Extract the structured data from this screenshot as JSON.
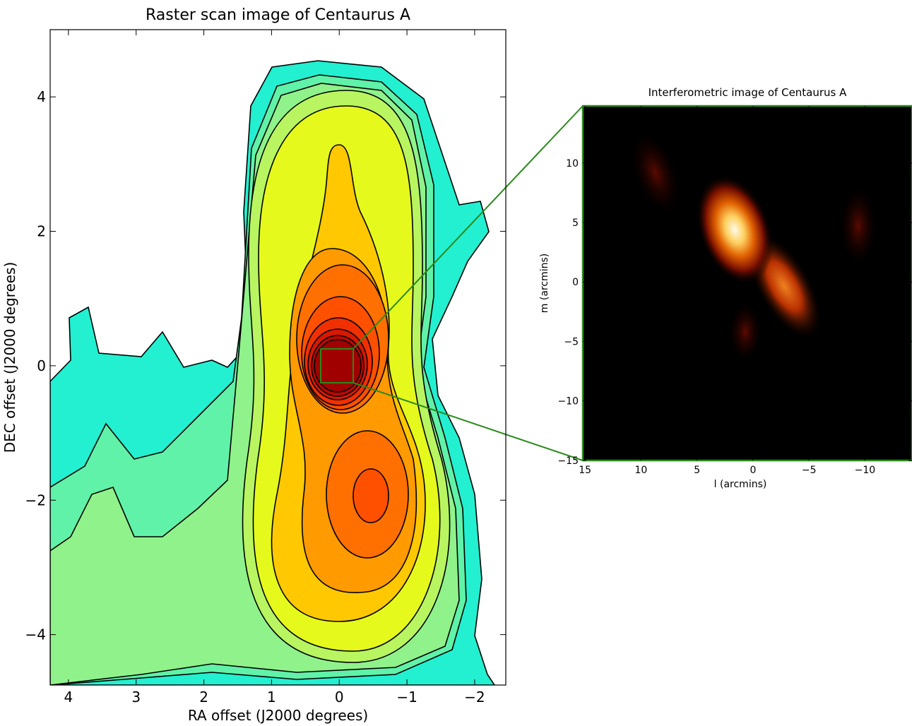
{
  "chart_data": [
    {
      "type": "contour",
      "title": "Raster scan image of Centaurus A",
      "xlabel": "RA offset (J2000 degrees)",
      "ylabel": "DEC offset (J2000 degrees)",
      "xlim": [
        4.27,
        -2.46
      ],
      "ylim": [
        -4.75,
        5.0
      ],
      "xticks": [
        4,
        3,
        2,
        1,
        0,
        {
          "value": -1,
          "label": "−1"
        },
        {
          "value": -2,
          "label": "−2"
        }
      ],
      "yticks": [
        {
          "value": -4,
          "label": "−4"
        },
        {
          "value": -2,
          "label": "−2"
        },
        0,
        2,
        4
      ]
    },
    {
      "type": "image",
      "title": "Interferometric image of Centaurus A",
      "xlabel": "l (arcmins)",
      "ylabel": "m (arcmins)",
      "xlim": [
        15.2,
        -14.2
      ],
      "ylim": [
        -15,
        14.8
      ],
      "xticks": [
        15,
        10,
        5,
        0,
        {
          "value": -5,
          "label": "−5"
        },
        {
          "value": -10,
          "label": "−10"
        }
      ],
      "yticks": [
        {
          "value": -15,
          "label": "−15"
        },
        {
          "value": -10,
          "label": "−10"
        },
        {
          "value": -5,
          "label": "−5"
        },
        0,
        5,
        10
      ]
    }
  ]
}
